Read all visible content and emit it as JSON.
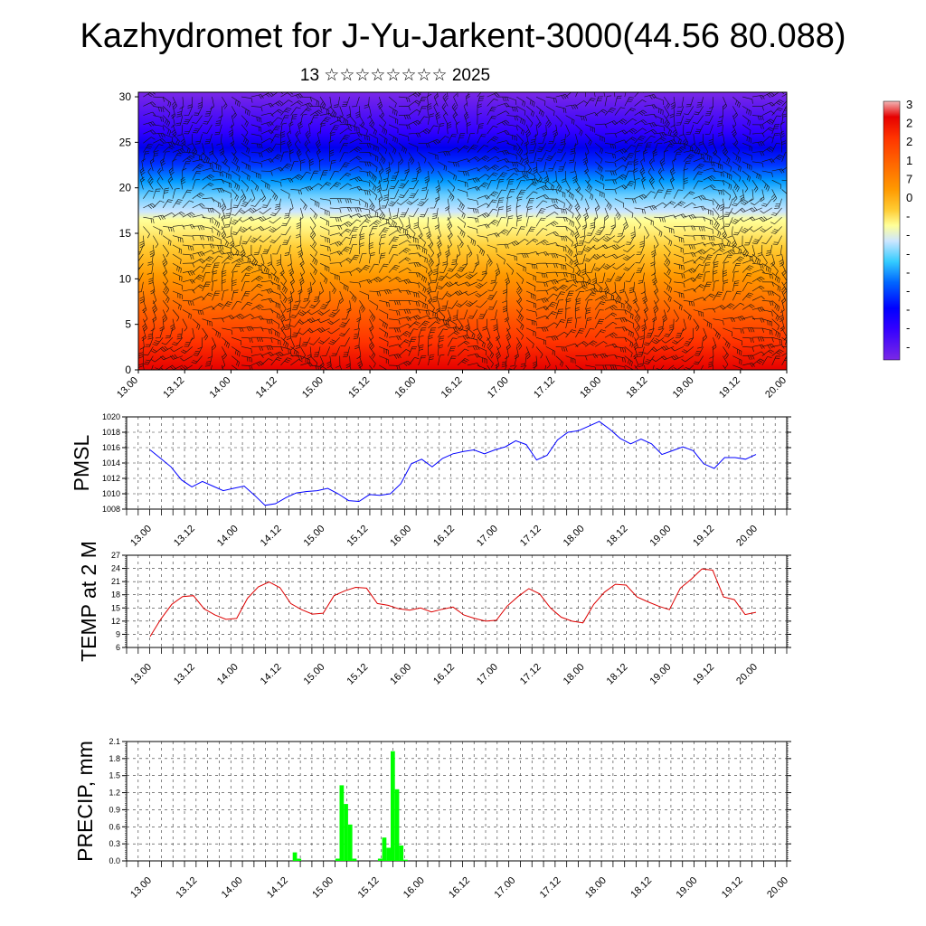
{
  "title": "Kazhydromet for J-Yu-Jarkent-3000(44.56 80.088)",
  "date_line": "13 ☆☆☆☆☆☆☆☆ 2025",
  "time_labels": [
    "13.00",
    "13.12",
    "14.00",
    "14.12",
    "15.00",
    "15.12",
    "16.00",
    "16.12",
    "17.00",
    "17.12",
    "18.00",
    "18.12",
    "19.00",
    "19.12",
    "20.00"
  ],
  "chart_data": [
    {
      "type": "heatmap",
      "y_ticks": [
        0,
        5,
        10,
        15,
        20,
        25,
        30
      ],
      "ylim": [
        0,
        30.5
      ],
      "description_colorbar_labels": [
        "3",
        "2",
        "2",
        "1",
        "7",
        "0",
        "-",
        "-",
        "-",
        "-",
        "-",
        "-",
        "-",
        "-"
      ],
      "colorbar_colors": [
        "#f2b6b6",
        "#e60000",
        "#ff3300",
        "#ff6600",
        "#ff9900",
        "#ffcc33",
        "#ffff99",
        "#cce6ff",
        "#33ccff",
        "#0099ff",
        "#0033ff",
        "#0000ff",
        "#3300ff",
        "#7a28e6"
      ],
      "overlay": "wind barbs"
    },
    {
      "type": "line",
      "ylabel": "PMSL",
      "ylim": [
        1008,
        1020
      ],
      "y_ticks": [
        1008,
        1010,
        1012,
        1014,
        1016,
        1018,
        1020
      ],
      "color": "#0000ff",
      "values": [
        1015.7,
        1014.6,
        1013.5,
        1011.8,
        1010.9,
        1011.6,
        1011.0,
        1010.4,
        1010.7,
        1011.0,
        1009.8,
        1008.5,
        1008.7,
        1009.5,
        1010.1,
        1010.3,
        1010.4,
        1010.7,
        1010.0,
        1009.1,
        1009.0,
        1009.9,
        1009.8,
        1010.0,
        1011.3,
        1013.9,
        1014.5,
        1013.5,
        1014.6,
        1015.2,
        1015.5,
        1015.7,
        1015.2,
        1015.7,
        1016.1,
        1016.9,
        1016.4,
        1014.4,
        1015.0,
        1017.0,
        1018.0,
        1018.2,
        1018.8,
        1019.4,
        1018.4,
        1017.2,
        1016.5,
        1017.1,
        1016.5,
        1015.1,
        1015.6,
        1016.1,
        1015.6,
        1013.9,
        1013.3,
        1014.7,
        1014.7,
        1014.5,
        1015.1
      ]
    },
    {
      "type": "line",
      "ylabel": "TEMP at 2 M",
      "ylim": [
        6,
        27
      ],
      "y_ticks": [
        6,
        9,
        12,
        15,
        18,
        21,
        24,
        27
      ],
      "color": "#dd0000",
      "values": [
        8.5,
        12.5,
        15.8,
        17.6,
        17.8,
        14.8,
        13.4,
        12.4,
        12.6,
        17.2,
        19.8,
        20.9,
        19.6,
        16.0,
        14.6,
        13.6,
        13.8,
        17.8,
        18.9,
        19.7,
        19.5,
        16.0,
        15.6,
        14.8,
        14.5,
        15.0,
        14.1,
        14.7,
        15.2,
        13.4,
        12.6,
        12.0,
        12.2,
        15.4,
        17.6,
        19.4,
        18.2,
        15.0,
        12.9,
        12.0,
        11.6,
        15.8,
        18.6,
        20.4,
        20.2,
        17.5,
        16.4,
        15.4,
        14.6,
        19.5,
        21.5,
        23.9,
        23.6,
        17.5,
        16.9,
        13.5,
        14.0
      ]
    },
    {
      "type": "bar",
      "ylabel": "PRECIP, mm",
      "ylim": [
        0,
        2.1
      ],
      "y_ticks": [
        0.0,
        0.3,
        0.6,
        0.9,
        1.2,
        1.5,
        1.8,
        2.1
      ],
      "color": "#00ff00",
      "values": [
        0,
        0,
        0,
        0,
        0,
        0,
        0,
        0,
        0,
        0,
        0,
        0,
        0,
        0,
        0,
        0,
        0,
        0,
        0,
        0,
        0,
        0,
        0,
        0,
        0,
        0,
        0,
        0,
        0,
        0,
        0,
        0,
        0,
        0,
        0,
        0,
        0,
        0,
        0,
        0.15,
        0.04,
        0,
        0,
        0,
        0,
        0,
        0,
        0,
        0,
        0.04,
        1.33,
        1.0,
        0.64,
        0.04,
        0,
        0,
        0,
        0,
        0,
        0.04,
        0.41,
        0.23,
        1.93,
        1.26,
        0.27,
        0.02,
        0,
        0,
        0,
        0,
        0,
        0,
        0,
        0,
        0,
        0,
        0,
        0,
        0,
        0,
        0,
        0,
        0,
        0,
        0,
        0,
        0,
        0,
        0,
        0,
        0,
        0,
        0,
        0,
        0,
        0,
        0,
        0,
        0,
        0,
        0,
        0,
        0,
        0,
        0,
        0,
        0,
        0,
        0,
        0,
        0,
        0,
        0,
        0,
        0,
        0,
        0,
        0,
        0,
        0,
        0,
        0,
        0,
        0,
        0,
        0,
        0,
        0,
        0,
        0,
        0,
        0,
        0,
        0,
        0,
        0,
        0,
        0,
        0,
        0,
        0,
        0,
        0,
        0,
        0,
        0,
        0,
        0,
        0,
        0,
        0,
        0,
        0,
        0,
        0
      ]
    }
  ]
}
